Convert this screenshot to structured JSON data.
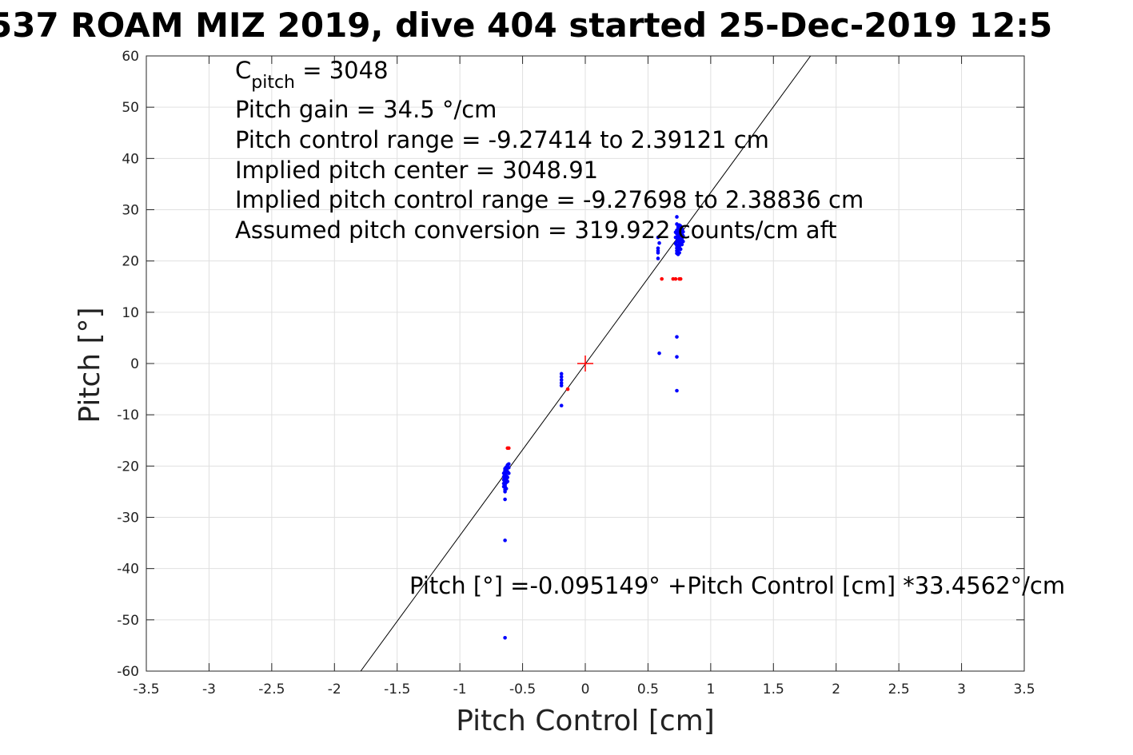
{
  "chart_data": {
    "type": "scatter",
    "title": "537 ROAM MIZ 2019, dive 404 started 25-Dec-2019 12:5",
    "xlabel": "Pitch Control [cm]",
    "ylabel": "Pitch [°]",
    "xlim": [
      -3.5,
      3.5
    ],
    "ylim": [
      -60,
      60
    ],
    "xticks": [
      "-3.5",
      "-3",
      "-2.5",
      "-2",
      "-1.5",
      "-1",
      "-0.5",
      "0",
      "0.5",
      "1",
      "1.5",
      "2",
      "2.5",
      "3",
      "3.5"
    ],
    "xtick_values": [
      -3.5,
      -3,
      -2.5,
      -2,
      -1.5,
      -1,
      -0.5,
      0,
      0.5,
      1,
      1.5,
      2,
      2.5,
      3,
      3.5
    ],
    "yticks": [
      "60",
      "50",
      "40",
      "30",
      "20",
      "10",
      "0",
      "-10",
      "-20",
      "-30",
      "-40",
      "-50",
      "-60"
    ],
    "ytick_values": [
      60,
      50,
      40,
      30,
      20,
      10,
      0,
      -10,
      -20,
      -30,
      -40,
      -50,
      -60
    ],
    "grid": true,
    "colors": {
      "blue": "#0000ff",
      "red": "#ff0000",
      "fit": "#000000",
      "grid": "#e0e0e0"
    },
    "fit_line": {
      "intercept": -0.095149,
      "slope": 33.4562
    },
    "center_marker": {
      "x": 0,
      "y": 0
    },
    "annotations": {
      "c_pitch_main": "C",
      "c_pitch_sub": "pitch",
      "c_pitch_value": " = 3048",
      "lines": [
        "Pitch gain = 34.5 °/cm",
        "Pitch control range = -9.27414 to 2.39121 cm",
        "Implied pitch center = 3048.91",
        "Implied pitch control range = -9.27698 to 2.38836 cm",
        "Assumed pitch conversion = 319.922 counts/cm aft"
      ],
      "fit_equation": "Pitch [°] =-0.095149° +Pitch Control [cm] *33.4562°/cm"
    },
    "series": [
      {
        "color": "blue",
        "points": [
          [
            -0.64,
            -20.5
          ],
          [
            -0.64,
            -20.8
          ],
          [
            -0.64,
            -21.0
          ],
          [
            -0.64,
            -21.3
          ],
          [
            -0.64,
            -21.5
          ],
          [
            -0.64,
            -21.8
          ],
          [
            -0.64,
            -22.0
          ],
          [
            -0.64,
            -22.3
          ],
          [
            -0.64,
            -22.5
          ],
          [
            -0.64,
            -22.8
          ],
          [
            -0.64,
            -23.0
          ],
          [
            -0.64,
            -23.3
          ],
          [
            -0.64,
            -23.6
          ],
          [
            -0.64,
            -23.9
          ],
          [
            -0.64,
            -24.2
          ],
          [
            -0.64,
            -24.6
          ],
          [
            -0.64,
            -25.0
          ],
          [
            -0.65,
            -21.4
          ],
          [
            -0.65,
            -22.1
          ],
          [
            -0.65,
            -22.7
          ],
          [
            -0.65,
            -23.4
          ],
          [
            -0.65,
            -24.0
          ],
          [
            -0.63,
            -20.2
          ],
          [
            -0.63,
            -20.6
          ],
          [
            -0.63,
            -21.2
          ],
          [
            -0.63,
            -21.9
          ],
          [
            -0.63,
            -22.6
          ],
          [
            -0.63,
            -23.2
          ],
          [
            -0.63,
            -24.4
          ],
          [
            -0.62,
            -19.8
          ],
          [
            -0.62,
            -20.4
          ],
          [
            -0.62,
            -21.1
          ],
          [
            -0.62,
            -22.2
          ],
          [
            -0.62,
            -23.0
          ],
          [
            -0.61,
            -19.6
          ],
          [
            -0.61,
            -20.3
          ],
          [
            -0.61,
            -21.4
          ],
          [
            -0.64,
            -26.5
          ],
          [
            -0.64,
            -34.5
          ],
          [
            -0.64,
            -53.5
          ],
          [
            -0.19,
            -2.0
          ],
          [
            -0.19,
            -2.6
          ],
          [
            -0.19,
            -3.2
          ],
          [
            -0.19,
            -3.8
          ],
          [
            -0.19,
            -4.3
          ],
          [
            -0.19,
            -8.2
          ],
          [
            0.58,
            20.5
          ],
          [
            0.58,
            21.6
          ],
          [
            0.58,
            22.0
          ],
          [
            0.58,
            22.5
          ],
          [
            0.59,
            23.5
          ],
          [
            0.58,
            24.6
          ],
          [
            0.73,
            21.5
          ],
          [
            0.73,
            22.0
          ],
          [
            0.73,
            22.5
          ],
          [
            0.73,
            23.0
          ],
          [
            0.73,
            23.8
          ],
          [
            0.73,
            24.5
          ],
          [
            0.73,
            25.3
          ],
          [
            0.73,
            26.0
          ],
          [
            0.73,
            27.2
          ],
          [
            0.73,
            28.6
          ],
          [
            0.74,
            21.3
          ],
          [
            0.74,
            22.2
          ],
          [
            0.74,
            23.1
          ],
          [
            0.74,
            24.2
          ],
          [
            0.74,
            25.0
          ],
          [
            0.74,
            25.8
          ],
          [
            0.74,
            26.6
          ],
          [
            0.75,
            21.6
          ],
          [
            0.75,
            22.8
          ],
          [
            0.75,
            23.6
          ],
          [
            0.75,
            24.4
          ],
          [
            0.75,
            25.2
          ],
          [
            0.75,
            26.1
          ],
          [
            0.75,
            27.0
          ],
          [
            0.76,
            22.3
          ],
          [
            0.76,
            23.4
          ],
          [
            0.76,
            24.1
          ],
          [
            0.76,
            25.0
          ],
          [
            0.76,
            25.9
          ],
          [
            0.76,
            26.8
          ],
          [
            0.77,
            23.2
          ],
          [
            0.77,
            24.3
          ],
          [
            0.77,
            25.4
          ],
          [
            0.77,
            26.3
          ],
          [
            0.78,
            23.8
          ],
          [
            0.78,
            24.9
          ],
          [
            0.78,
            25.7
          ],
          [
            0.72,
            23.4
          ],
          [
            0.72,
            24.6
          ],
          [
            0.72,
            25.6
          ],
          [
            0.59,
            2.0
          ],
          [
            0.73,
            5.2
          ],
          [
            0.73,
            1.3
          ],
          [
            0.73,
            -5.3
          ]
        ]
      },
      {
        "color": "red",
        "points": [
          [
            -0.62,
            -16.5
          ],
          [
            -0.61,
            -16.5
          ],
          [
            -0.14,
            -5.0
          ],
          [
            0.61,
            16.5
          ],
          [
            0.7,
            16.5
          ],
          [
            0.72,
            16.5
          ],
          [
            0.75,
            16.5
          ],
          [
            0.76,
            16.5
          ]
        ]
      }
    ]
  }
}
